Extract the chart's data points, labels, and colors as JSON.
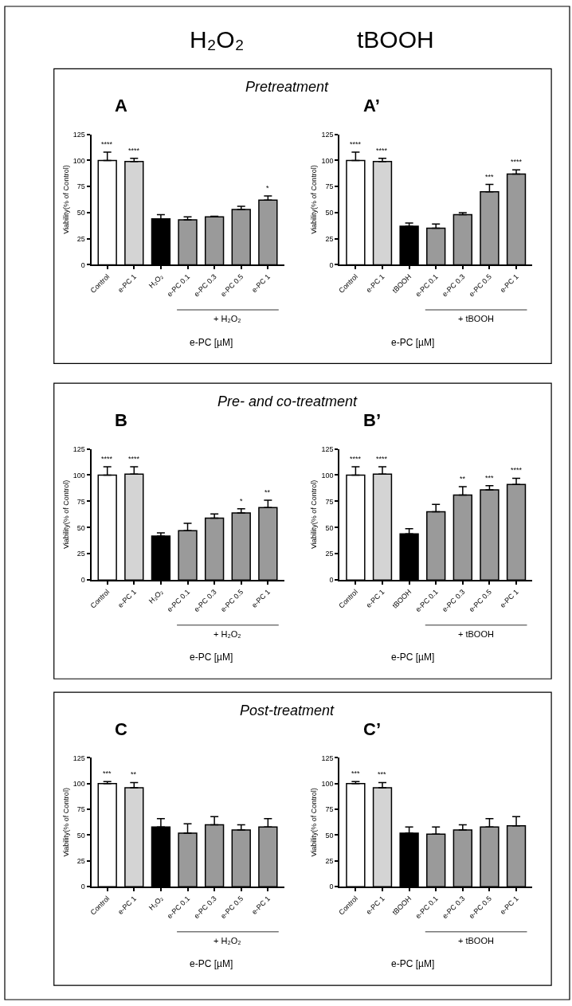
{
  "chart_data": [
    {
      "type": "bar",
      "title": "A",
      "subtitle": "Pretreatment",
      "xlabel": "e-PC [µM]",
      "ylabel": "Viability(% of Control)",
      "annotations": [
        "H₂O₂",
        "+ H₂O₂"
      ],
      "categories": [
        "Control",
        "e-PC 1",
        "H₂O₂",
        "e-PC 0.1",
        "e-PC 0.3",
        "e-PC 0.5",
        "e-PC 1"
      ],
      "ylim": [
        0,
        125
      ],
      "yticks": [
        0,
        25,
        50,
        75,
        100,
        125
      ],
      "series": [
        {
          "colors": [
            "#ffffff",
            "#d4d4d4",
            "#000000",
            "#9a9a9a",
            "#9a9a9a",
            "#9a9a9a",
            "#9a9a9a"
          ],
          "values": [
            100,
            99,
            44,
            43,
            46,
            53,
            62
          ],
          "errors": [
            [
              100,
              108
            ],
            [
              99,
              102
            ],
            [
              44,
              48
            ],
            [
              43,
              46
            ],
            [
              46,
              46.5
            ],
            [
              53,
              56
            ],
            [
              62,
              66
            ]
          ],
          "value_labels": [
            "****",
            "****",
            null,
            null,
            null,
            null,
            "*"
          ]
        }
      ]
    },
    {
      "type": "bar",
      "title": "A’",
      "xlabel": "e-PC [µM]",
      "ylabel": "Viability(% of Control)",
      "annotations": [
        "tBOOH",
        "+ tBOOH"
      ],
      "categories": [
        "Control",
        "e-PC 1",
        "tBOOH",
        "e-PC 0.1",
        "e-PC 0.3",
        "e-PC 0.5",
        "e-PC 1"
      ],
      "ylim": [
        0,
        125
      ],
      "yticks": [
        0,
        25,
        50,
        75,
        100,
        125
      ],
      "series": [
        {
          "colors": [
            "#ffffff",
            "#d4d4d4",
            "#000000",
            "#9a9a9a",
            "#9a9a9a",
            "#9a9a9a",
            "#9a9a9a"
          ],
          "values": [
            100,
            99,
            37,
            35,
            48,
            70,
            87
          ],
          "errors": [
            [
              100,
              108
            ],
            [
              99,
              102
            ],
            [
              37,
              40
            ],
            [
              35,
              39
            ],
            [
              48,
              50
            ],
            [
              70,
              77
            ],
            [
              87,
              91
            ]
          ],
          "value_labels": [
            "****",
            "****",
            null,
            null,
            null,
            "***",
            "****"
          ]
        }
      ]
    },
    {
      "type": "bar",
      "title": "B",
      "subtitle": "Pre- and co-treatment",
      "xlabel": "e-PC [µM]",
      "ylabel": "Viability(% of Control)",
      "annotations": [
        "+ H₂O₂"
      ],
      "categories": [
        "Control",
        "e-PC 1",
        "H₂O₂",
        "e-PC 0.1",
        "e-PC 0.3",
        "e-PC 0.5",
        "e-PC 1"
      ],
      "ylim": [
        0,
        125
      ],
      "yticks": [
        0,
        25,
        50,
        75,
        100,
        125
      ],
      "series": [
        {
          "colors": [
            "#ffffff",
            "#d4d4d4",
            "#000000",
            "#9a9a9a",
            "#9a9a9a",
            "#9a9a9a",
            "#9a9a9a"
          ],
          "values": [
            100,
            101,
            42,
            47,
            59,
            64,
            69
          ],
          "errors": [
            [
              100,
              108
            ],
            [
              101,
              108
            ],
            [
              42,
              45
            ],
            [
              47,
              54
            ],
            [
              59,
              63
            ],
            [
              64,
              68
            ],
            [
              69,
              76
            ]
          ],
          "value_labels": [
            "****",
            "****",
            null,
            null,
            null,
            "*",
            "**"
          ]
        }
      ]
    },
    {
      "type": "bar",
      "title": "B’",
      "xlabel": "e-PC [µM]",
      "ylabel": "Viability(% of Control)",
      "annotations": [
        "+ tBOOH"
      ],
      "categories": [
        "Control",
        "e-PC 1",
        "tBOOH",
        "e-PC 0.1",
        "e-PC 0.3",
        "e-PC 0.5",
        "e-PC 1"
      ],
      "ylim": [
        0,
        125
      ],
      "yticks": [
        0,
        25,
        50,
        75,
        100,
        125
      ],
      "series": [
        {
          "colors": [
            "#ffffff",
            "#d4d4d4",
            "#000000",
            "#9a9a9a",
            "#9a9a9a",
            "#9a9a9a",
            "#9a9a9a"
          ],
          "values": [
            100,
            101,
            44,
            65,
            81,
            86,
            91
          ],
          "errors": [
            [
              100,
              108
            ],
            [
              101,
              108
            ],
            [
              44,
              49
            ],
            [
              65,
              72
            ],
            [
              81,
              89
            ],
            [
              86,
              90
            ],
            [
              91,
              97
            ]
          ],
          "value_labels": [
            "****",
            "****",
            null,
            null,
            "**",
            "***",
            "****"
          ]
        }
      ]
    },
    {
      "type": "bar",
      "title": "C",
      "subtitle": "Post-treatment",
      "xlabel": "e-PC [µM]",
      "ylabel": "Viability(% of Control)",
      "annotations": [
        "+ H₂O₂"
      ],
      "categories": [
        "Control",
        "e-PC 1",
        "H₂O₂",
        "e-PC 0.1",
        "e-PC 0.3",
        "e-PC 0.5",
        "e-PC 1"
      ],
      "ylim": [
        0,
        125
      ],
      "yticks": [
        0,
        25,
        50,
        75,
        100,
        125
      ],
      "series": [
        {
          "colors": [
            "#ffffff",
            "#d4d4d4",
            "#000000",
            "#9a9a9a",
            "#9a9a9a",
            "#9a9a9a",
            "#9a9a9a"
          ],
          "values": [
            100,
            96,
            58,
            52,
            60,
            55,
            58
          ],
          "errors": [
            [
              100,
              102
            ],
            [
              96,
              101
            ],
            [
              58,
              66
            ],
            [
              52,
              61
            ],
            [
              60,
              68
            ],
            [
              55,
              60
            ],
            [
              58,
              66
            ]
          ],
          "value_labels": [
            "***",
            "**",
            null,
            null,
            null,
            null,
            null
          ]
        }
      ]
    },
    {
      "type": "bar",
      "title": "C’",
      "xlabel": "e-PC [µM]",
      "ylabel": "Viability(% of Control)",
      "annotations": [
        "+ tBOOH"
      ],
      "categories": [
        "Control",
        "e-PC 1",
        "tBOOH",
        "e-PC 0.1",
        "e-PC 0.3",
        "e-PC 0.5",
        "e-PC 1"
      ],
      "ylim": [
        0,
        125
      ],
      "yticks": [
        0,
        25,
        50,
        75,
        100,
        125
      ],
      "series": [
        {
          "colors": [
            "#ffffff",
            "#d4d4d4",
            "#000000",
            "#9a9a9a",
            "#9a9a9a",
            "#9a9a9a",
            "#9a9a9a"
          ],
          "values": [
            100,
            96,
            52,
            51,
            55,
            58,
            59
          ],
          "errors": [
            [
              100,
              102
            ],
            [
              96,
              101
            ],
            [
              52,
              58
            ],
            [
              51,
              58
            ],
            [
              55,
              60
            ],
            [
              58,
              66
            ],
            [
              59,
              68
            ]
          ],
          "value_labels": [
            "***",
            "***",
            null,
            null,
            null,
            null,
            null
          ]
        }
      ]
    }
  ]
}
